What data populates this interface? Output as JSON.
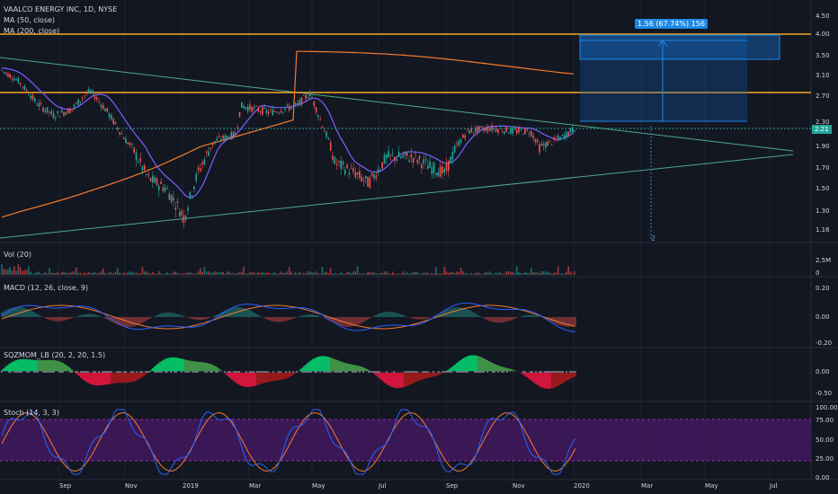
{
  "header": {
    "symbol_line": "VAALCO ENERGY INC, 1D, NYSE",
    "ma50_label": "MA (50, close)",
    "ma200_label": "MA (200, close)"
  },
  "measure_label": "1.56 (67.74%) 156",
  "measure_bar_count": "2",
  "current_price": "2.21",
  "price_axis": [
    "4.50",
    "4.00",
    "3.50",
    "3.10",
    "2.70",
    "2.30",
    "1.90",
    "1.70",
    "1.50",
    "1.30",
    "1.16"
  ],
  "panels": {
    "vol": {
      "label": "Vol (20)",
      "scale": [
        "2.5M",
        "0"
      ]
    },
    "macd": {
      "label": "MACD (12, 26, close, 9)",
      "scale": [
        "0.20",
        "0.00",
        "-0.20"
      ]
    },
    "sqzmom": {
      "label": "SQZMOM_LB (20, 2, 20, 1.5)",
      "scale": [
        "0.00",
        "-0.50"
      ]
    },
    "stoch": {
      "label": "Stoch (14, 3, 3)",
      "scale": [
        "100.00",
        "75.00",
        "50.00",
        "25.00",
        "0.00"
      ]
    }
  },
  "time_axis": [
    "Sep",
    "Nov",
    "2019",
    "Mar",
    "May",
    "Jul",
    "Sep",
    "Nov",
    "2020",
    "Mar",
    "May",
    "Jul"
  ],
  "colors": {
    "background": "#131722",
    "grid": "#1e222d",
    "candle_up": "#26a69a",
    "candle_down": "#ef5350",
    "ma50": "#7b61ff",
    "ma200": "#f57c2c",
    "resistance": "#f5a623",
    "trendline": "#4fa889",
    "measure_box": "#1565c0",
    "stoch_band": "#4a1a6b"
  }
}
